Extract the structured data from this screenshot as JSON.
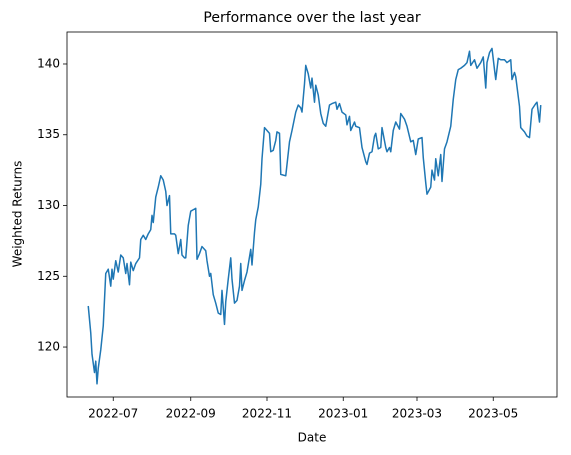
{
  "chart_data": {
    "type": "line",
    "title": "Performance over the last year",
    "x_label": "Date",
    "y_label": "Weighted Returns",
    "x": [
      161,
      163,
      164,
      166,
      167,
      168,
      169,
      171,
      173,
      175,
      177,
      179,
      180,
      181,
      183,
      185,
      187,
      189,
      191,
      192,
      194,
      195,
      197,
      199,
      202,
      203,
      205,
      207,
      209,
      211,
      212,
      213,
      215,
      217,
      219,
      221,
      223,
      224,
      226,
      227,
      230,
      231,
      233,
      235,
      236,
      238,
      239,
      241,
      243,
      245,
      247,
      248,
      250,
      252,
      255,
      256,
      258,
      259,
      261,
      263,
      265,
      267,
      268,
      270,
      271,
      273,
      275,
      276,
      278,
      280,
      282,
      283,
      284,
      286,
      288,
      291,
      292,
      294,
      295,
      297,
      299,
      300,
      302,
      304,
      306,
      307,
      309,
      311,
      312,
      314,
      315,
      319,
      322,
      324,
      327,
      329,
      331,
      332,
      334,
      335,
      337,
      339,
      340,
      342,
      343,
      345,
      347,
      349,
      351,
      354,
      356,
      359,
      360,
      362,
      364,
      367,
      368,
      370,
      371,
      374,
      375,
      378,
      380,
      383,
      384,
      386,
      388,
      390,
      391,
      393,
      395,
      396,
      399,
      400,
      402,
      403,
      405,
      407,
      410,
      411,
      414,
      416,
      419,
      421,
      423,
      425,
      428,
      429,
      431,
      432,
      435,
      436,
      438,
      439,
      441,
      443,
      444,
      446,
      448,
      451,
      453,
      455,
      457,
      459,
      462,
      464,
      466,
      467,
      470,
      472,
      475,
      477,
      479,
      480,
      482,
      484,
      486,
      487,
      489,
      491,
      494,
      496,
      499,
      500,
      502,
      503,
      506,
      507,
      510,
      512,
      514,
      516,
      519,
      520,
      522,
      523
    ],
    "series": [
      {
        "name": "Weighted Returns",
        "color": "#1f77b4",
        "values": [
          122.9,
          121,
          119.5,
          118.2,
          119,
          117.4,
          118.5,
          119.8,
          121.5,
          125.2,
          125.5,
          124.3,
          125.5,
          124.8,
          126.1,
          125.3,
          126.5,
          126.3,
          125.2,
          125.9,
          124.4,
          126,
          125.4,
          125.9,
          126.3,
          127.6,
          127.9,
          127.6,
          128,
          128.3,
          129.3,
          128.8,
          130.6,
          131.3,
          132.1,
          131.8,
          131,
          130,
          130.7,
          128,
          128,
          127.9,
          126.6,
          127.6,
          126.5,
          126.3,
          126.3,
          128.6,
          129.6,
          129.7,
          129.8,
          126.2,
          126.6,
          127.1,
          126.8,
          126.1,
          125,
          125.2,
          123.7,
          123.1,
          122.4,
          122.3,
          124,
          121.6,
          123.2,
          124.8,
          126.3,
          124.8,
          123.1,
          123.3,
          124.3,
          125.9,
          124,
          124.7,
          125.3,
          126.9,
          125.8,
          128.1,
          129,
          129.9,
          131.5,
          133.3,
          135.5,
          135.3,
          135.1,
          133.8,
          133.9,
          134.6,
          135.2,
          135.1,
          132.2,
          132.1,
          134.5,
          135.3,
          136.6,
          137.1,
          136.9,
          136.6,
          138.6,
          139.9,
          139.3,
          138.3,
          139,
          137.3,
          138.5,
          137.8,
          136.5,
          135.8,
          135.6,
          137.1,
          137.2,
          137.3,
          136.8,
          137.2,
          136.6,
          136.4,
          135.7,
          136.3,
          135.3,
          135.9,
          135.6,
          135.5,
          134.1,
          133.1,
          132.9,
          133.7,
          133.8,
          134.9,
          135.1,
          134,
          134.1,
          135.5,
          134.1,
          133.8,
          134.1,
          133.8,
          135.3,
          135.9,
          135.4,
          136.5,
          136.1,
          135.6,
          134.5,
          134.6,
          133.6,
          134.7,
          134.8,
          133.4,
          131.6,
          130.8,
          131.3,
          132.5,
          131.8,
          133.3,
          132.1,
          133.6,
          131.7,
          134,
          134.5,
          135.6,
          137.5,
          138.9,
          139.6,
          139.7,
          139.9,
          140.1,
          140.9,
          139.9,
          140.3,
          139.7,
          140.1,
          140.5,
          138.3,
          140.1,
          140.8,
          141.1,
          139.6,
          138.9,
          140.4,
          140.3,
          140.3,
          140.1,
          140.3,
          138.9,
          139.4,
          139.1,
          137,
          135.5,
          135.2,
          134.9,
          134.8,
          136.8,
          137.2,
          137.3,
          135.9,
          137.1
        ]
      }
    ],
    "xlim": [
      144,
      536
    ],
    "xticks": [
      {
        "value": 181,
        "label": "2022-07"
      },
      {
        "value": 243,
        "label": "2022-09"
      },
      {
        "value": 304,
        "label": "2022-11"
      },
      {
        "value": 365,
        "label": "2023-01"
      },
      {
        "value": 424,
        "label": "2023-03"
      },
      {
        "value": 485,
        "label": "2023-05"
      }
    ],
    "ylim": [
      116.47,
      142.26
    ],
    "yticks": [
      120,
      125,
      130,
      135,
      140
    ],
    "grid": false
  }
}
